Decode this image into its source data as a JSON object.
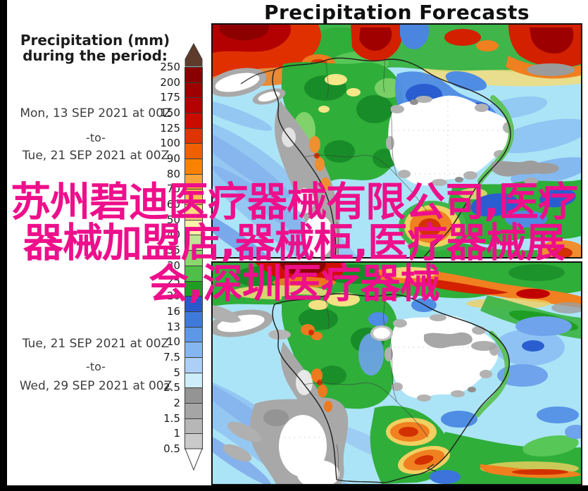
{
  "title": "Precipitation Forecasts",
  "sidebar": {
    "heading_line1": "Precipitation (mm)",
    "heading_line2": "during the period:",
    "period1": {
      "start": "Mon, 13 SEP 2021 at 00Z",
      "separator": "-to-",
      "end": "Tue, 21 SEP 2021 at 00Z"
    },
    "period2": {
      "start": "Tue, 21 SEP 2021 at 00Z",
      "separator": "-to-",
      "end": "Wed, 29 SEP 2021 at 00Z"
    }
  },
  "colorbar": {
    "unit": "mm",
    "labels": [
      "250",
      "200",
      "175",
      "150",
      "125",
      "100",
      "90",
      "80",
      "70",
      "60",
      "50",
      "40",
      "35",
      "30",
      "25",
      "20",
      "16",
      "13",
      "10",
      "7.5",
      "5",
      "2.5",
      "2",
      "1.5",
      "1",
      "0.5"
    ],
    "segment_colors_top_to_bottom": [
      "#8a0000",
      "#9e0000",
      "#b30000",
      "#c90c00",
      "#de3400",
      "#ee6000",
      "#fa8200",
      "#f9a43b",
      "#fbc14b",
      "#fcdb7e",
      "#fdf0a8",
      "#bce596",
      "#8ad76d",
      "#4fbf49",
      "#1f9e24",
      "#2859cc",
      "#3f79dc",
      "#5f97e8",
      "#86b6f0",
      "#accff6",
      "#cdedfa",
      "#949494",
      "#a5a5a5",
      "#b7b7b7",
      "#cacaca"
    ],
    "above_max_color": "#5e3b2a",
    "below_min_color": "#ffffff"
  },
  "watermark": {
    "color": "#ee0f8b",
    "lines": [
      "苏州碧迪医疗器械有限公司,医疗",
      "器械加盟店,器械柜,医疗器械展",
      "会,深圳医疗器械"
    ]
  },
  "chart_data": {
    "type": "heatmap",
    "title": "Precipitation Forecasts",
    "variable": "Accumulated precipitation (mm) during the period",
    "region": "South America and adjacent oceans",
    "scale_mm": [
      0.5,
      1,
      1.5,
      2,
      2.5,
      5,
      7.5,
      10,
      13,
      16,
      20,
      25,
      30,
      35,
      40,
      50,
      60,
      70,
      80,
      90,
      100,
      125,
      150,
      175,
      200,
      250
    ],
    "legend_position": "left",
    "panels": [
      {
        "period_start": "Mon, 13 SEP 2021 at 00Z",
        "period_end": "Tue, 21 SEP 2021 at 00Z",
        "pattern_summary": "Heavy ITCZ rain band (100-250+ mm) across the far north near the equator; 30-100 mm over NW South America and the Colombia/Ecuador/Peru Andes; 10-25 mm over the central Amazon; under 2.5 mm (white/gray) over interior eastern Brazil, coastal Peru, Chile and Argentina; 20-100 mm band with embedded 60-100 mm cores over southern Brazil, Uruguay and the adjacent South Atlantic."
      },
      {
        "period_start": "Tue, 21 SEP 2021 at 00Z",
        "period_end": "Wed, 29 SEP 2021 at 00Z",
        "pattern_summary": "ITCZ band of 25-150 mm across the far north with a 100-175 mm streak; 20-60 mm with local 80-100 mm spots along the NW Andes; under 2.5 mm over interior east-central Brazil, coastal Peru, Chile and central Argentina; 30-125 mm frontal band from NE Argentina and Uruguay across southern Brazil into the South Atlantic; 5-16 mm over much of the surrounding ocean."
      }
    ]
  }
}
